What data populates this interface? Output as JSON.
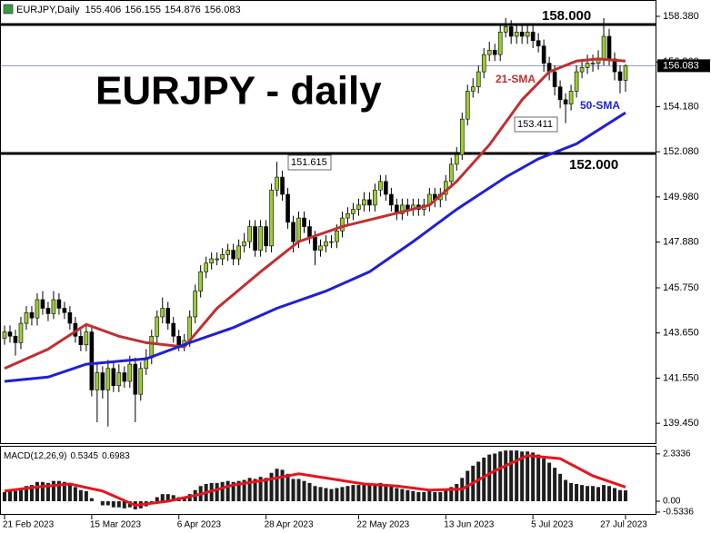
{
  "chart_data": [
    {
      "type": "candlestick",
      "title": "EURJPY - daily",
      "symbol": "EURJPY,Daily",
      "bull_color": "#9acd32",
      "bear_color": "#000000",
      "open": [
        143.4,
        143.7,
        143.5,
        143.2,
        144.1,
        144.6,
        144.35,
        145.2,
        144.8,
        144.55,
        145.2,
        144.8,
        144.6,
        144.1,
        143.5,
        143.1,
        143.7,
        141.0,
        141.8,
        141.0,
        142.0,
        141.2,
        141.8,
        141.4,
        142.2,
        140.8,
        142.0,
        142.5,
        143.5,
        144.4,
        144.8,
        144.1,
        143.5,
        143.1,
        143.3,
        144.4,
        145.6,
        146.5,
        146.9,
        147.1,
        147.1,
        147.3,
        147.5,
        147.1,
        147.7,
        147.9,
        148.6,
        147.5,
        148.6,
        147.7,
        150.3,
        150.9,
        150.1,
        148.8,
        147.9,
        149.0,
        148.6,
        148.1,
        147.5,
        147.7,
        147.9,
        147.9,
        148.4,
        149.0,
        149.2,
        149.4,
        149.6,
        149.85,
        149.6,
        150.3,
        150.7,
        150.1,
        149.6,
        149.2,
        149.6,
        149.4,
        149.6,
        149.4,
        149.6,
        150.1,
        149.85,
        150.1,
        150.7,
        151.5,
        151.95,
        153.6,
        154.9,
        155.1,
        155.8,
        156.6,
        156.8,
        156.6,
        157.65,
        157.9,
        157.45,
        157.65,
        157.45,
        157.65,
        157.25,
        157.0,
        156.2,
        155.8,
        155.1,
        154.5,
        154.3,
        154.9,
        155.8,
        156.0,
        156.2,
        156.2,
        156.4,
        157.45,
        156.4,
        155.8,
        155.406
      ],
      "high": [
        144.0,
        144.0,
        143.8,
        144.4,
        144.9,
        144.9,
        145.5,
        145.6,
        145.1,
        145.6,
        145.5,
        145.1,
        144.9,
        144.4,
        143.8,
        144.0,
        144.0,
        142.3,
        142.1,
        142.4,
        142.3,
        142.2,
        142.1,
        142.6,
        142.5,
        142.3,
        142.9,
        143.8,
        144.7,
        145.3,
        145.1,
        144.4,
        143.8,
        143.6,
        144.7,
        145.9,
        146.8,
        147.2,
        147.4,
        147.4,
        147.6,
        147.8,
        147.8,
        148.0,
        148.3,
        148.9,
        148.9,
        148.9,
        148.9,
        150.6,
        151.615,
        151.2,
        150.4,
        149.1,
        149.3,
        149.3,
        148.9,
        148.4,
        148.0,
        148.2,
        148.2,
        148.7,
        149.3,
        149.5,
        149.7,
        149.9,
        150.2,
        150.2,
        150.6,
        151.0,
        151.0,
        150.4,
        149.9,
        149.9,
        149.9,
        149.9,
        149.9,
        149.9,
        150.4,
        150.4,
        150.4,
        151.0,
        151.8,
        152.3,
        153.9,
        155.2,
        155.5,
        156.1,
        156.9,
        157.2,
        157.1,
        158.0,
        158.3,
        158.2,
        158.0,
        158.0,
        158.0,
        158.0,
        157.6,
        157.3,
        156.5,
        156.1,
        155.4,
        154.8,
        155.2,
        156.1,
        156.4,
        156.6,
        156.6,
        156.8,
        158.3,
        157.8,
        156.7,
        156.1,
        156.155
      ],
      "low": [
        143.1,
        143.2,
        142.6,
        142.9,
        143.8,
        144.0,
        144.0,
        144.5,
        144.2,
        144.3,
        144.5,
        144.3,
        143.8,
        143.2,
        142.8,
        142.8,
        140.7,
        139.5,
        140.6,
        139.3,
        140.9,
        140.9,
        141.1,
        141.1,
        139.5,
        140.5,
        141.7,
        142.2,
        143.2,
        144.1,
        143.8,
        143.2,
        142.8,
        142.8,
        143.0,
        144.1,
        145.3,
        146.2,
        146.6,
        146.8,
        146.8,
        147.0,
        146.8,
        146.8,
        147.4,
        147.6,
        147.2,
        147.2,
        147.4,
        147.4,
        150.0,
        149.8,
        148.5,
        147.4,
        147.6,
        148.3,
        147.8,
        146.8,
        147.2,
        147.4,
        147.6,
        147.6,
        148.1,
        148.7,
        148.9,
        149.1,
        149.3,
        149.3,
        149.3,
        150.0,
        149.8,
        149.3,
        148.9,
        148.9,
        149.1,
        149.1,
        149.1,
        149.1,
        149.3,
        149.5,
        149.5,
        149.8,
        150.4,
        151.2,
        151.7,
        153.3,
        154.6,
        154.8,
        155.5,
        156.3,
        156.3,
        156.3,
        157.4,
        157.1,
        157.1,
        157.1,
        157.1,
        156.9,
        156.7,
        155.8,
        155.4,
        154.7,
        154.1,
        153.411,
        154.0,
        154.6,
        155.5,
        155.7,
        155.8,
        155.9,
        156.1,
        156.1,
        155.4,
        154.8,
        154.876
      ],
      "close": [
        143.7,
        143.5,
        143.2,
        144.1,
        144.6,
        144.35,
        145.2,
        144.8,
        144.55,
        145.2,
        144.8,
        144.6,
        144.1,
        143.5,
        143.1,
        143.7,
        141.0,
        141.8,
        141.0,
        142.0,
        141.2,
        141.8,
        141.4,
        142.2,
        140.8,
        142.0,
        142.5,
        143.5,
        144.4,
        144.8,
        144.1,
        143.5,
        143.1,
        143.3,
        144.4,
        145.6,
        146.5,
        146.9,
        147.1,
        147.1,
        147.3,
        147.5,
        147.1,
        147.7,
        147.9,
        148.6,
        147.5,
        148.6,
        147.7,
        150.3,
        150.9,
        150.1,
        148.8,
        147.9,
        149.0,
        148.6,
        148.1,
        147.5,
        147.7,
        147.9,
        147.9,
        148.4,
        149.0,
        149.2,
        149.4,
        149.6,
        149.85,
        149.6,
        150.3,
        150.7,
        150.1,
        149.6,
        149.2,
        149.6,
        149.4,
        149.6,
        149.4,
        149.6,
        150.1,
        149.85,
        150.1,
        150.7,
        151.5,
        151.95,
        153.6,
        154.9,
        155.1,
        155.8,
        156.6,
        156.8,
        156.6,
        157.65,
        157.9,
        157.45,
        157.65,
        157.45,
        157.65,
        157.25,
        157.0,
        156.2,
        155.8,
        155.1,
        154.5,
        154.3,
        154.9,
        155.8,
        156.0,
        156.2,
        156.2,
        156.4,
        157.45,
        156.4,
        155.8,
        155.4,
        156.083
      ],
      "series": [
        {
          "name": "21-SMA",
          "color": "#c0302f",
          "x": [
            0,
            8,
            15,
            21,
            26,
            33,
            39,
            47,
            54,
            62,
            70,
            78,
            83,
            89,
            95,
            100,
            105,
            109,
            114
          ],
          "values": [
            142.0,
            142.9,
            144.05,
            143.5,
            143.2,
            143.0,
            144.8,
            146.5,
            147.9,
            148.6,
            149.1,
            149.6,
            150.7,
            152.4,
            154.5,
            155.8,
            156.3,
            156.4,
            156.3
          ]
        },
        {
          "name": "50-SMA",
          "color": "#1f1fd6",
          "x": [
            0,
            8,
            15,
            26,
            34,
            42,
            50,
            59,
            67,
            75,
            83,
            92,
            98,
            105,
            114
          ],
          "values": [
            141.4,
            141.6,
            142.2,
            142.45,
            143.2,
            143.9,
            144.8,
            145.6,
            146.5,
            147.9,
            149.4,
            150.9,
            151.75,
            152.45,
            153.9
          ]
        }
      ],
      "levels": [
        {
          "value": 158,
          "label": "158.000"
        },
        {
          "value": 152,
          "label": "152.000"
        }
      ],
      "ylim": [
        138.57,
        159.14
      ],
      "yticks": [
        {
          "value": 158.38,
          "label": "158.380"
        },
        {
          "value": 156.26,
          "label": "156.260"
        },
        {
          "value": 154.18,
          "label": "154.180"
        },
        {
          "value": 152.08,
          "label": "152.080"
        },
        {
          "value": 149.98,
          "label": "149.980"
        },
        {
          "value": 147.88,
          "label": "147.880"
        },
        {
          "value": 145.75,
          "label": "145.750"
        },
        {
          "value": 143.65,
          "label": "143.650"
        },
        {
          "value": 141.55,
          "label": "141.550"
        },
        {
          "value": 139.45,
          "label": "139.450"
        }
      ],
      "xticks": [
        {
          "value": 0,
          "label": "21 Feb 2023"
        },
        {
          "value": 16,
          "label": "15 Mar 2023"
        },
        {
          "value": 32,
          "label": "6 Apr 2023"
        },
        {
          "value": 48,
          "label": "28 Apr 2023"
        },
        {
          "value": 65,
          "label": "22 May 2023"
        },
        {
          "value": 81,
          "label": "13 Jun 2023"
        },
        {
          "value": 97,
          "label": "5 Jul 2023"
        },
        {
          "value": 114,
          "label": "27 Jul 2023"
        }
      ]
    },
    {
      "type": "bar",
      "title": "MACD(12,26,9)",
      "color": "#1e1e1e",
      "values": [
        0.45,
        0.55,
        0.5,
        0.65,
        0.75,
        0.8,
        0.95,
        0.95,
        0.9,
        1.0,
        1.0,
        0.95,
        0.85,
        0.7,
        0.55,
        0.5,
        0.15,
        0.0,
        -0.2,
        -0.2,
        -0.3,
        -0.3,
        -0.35,
        -0.3,
        -0.4,
        -0.35,
        -0.25,
        -0.05,
        0.2,
        0.35,
        0.35,
        0.3,
        0.2,
        0.2,
        0.35,
        0.55,
        0.75,
        0.85,
        0.9,
        0.9,
        0.95,
        1.0,
        0.95,
        1.0,
        1.05,
        1.15,
        1.1,
        1.2,
        1.15,
        1.4,
        1.6,
        1.55,
        1.35,
        1.1,
        1.1,
        1.0,
        0.9,
        0.75,
        0.7,
        0.65,
        0.6,
        0.65,
        0.7,
        0.75,
        0.8,
        0.8,
        0.85,
        0.8,
        0.85,
        0.9,
        0.85,
        0.75,
        0.65,
        0.6,
        0.55,
        0.5,
        0.45,
        0.45,
        0.5,
        0.45,
        0.45,
        0.55,
        0.7,
        0.85,
        1.15,
        1.5,
        1.75,
        1.95,
        2.15,
        2.3,
        2.35,
        2.45,
        2.5,
        2.5,
        2.5,
        2.45,
        2.45,
        2.4,
        2.3,
        2.1,
        1.9,
        1.65,
        1.35,
        1.05,
        0.9,
        0.85,
        0.8,
        0.75,
        0.75,
        0.7,
        0.8,
        0.75,
        0.65,
        0.55,
        0.5345
      ],
      "signal": {
        "color": "#e8141e",
        "x": [
          0,
          6,
          12,
          18,
          24,
          30,
          36,
          42,
          48,
          54,
          60,
          66,
          72,
          78,
          84,
          90,
          96,
          102,
          108,
          114
        ],
        "values": [
          0.5,
          0.7,
          0.85,
          0.5,
          -0.2,
          0.0,
          0.35,
          0.8,
          1.05,
          1.35,
          1.1,
          0.85,
          0.75,
          0.55,
          0.6,
          1.5,
          2.25,
          2.1,
          1.25,
          0.6983
        ]
      },
      "ylim": [
        -0.67,
        2.73
      ],
      "yticks": [
        2.3336,
        {
          "value": 0,
          "label": "0.00"
        },
        -0.5336
      ]
    }
  ]
}
